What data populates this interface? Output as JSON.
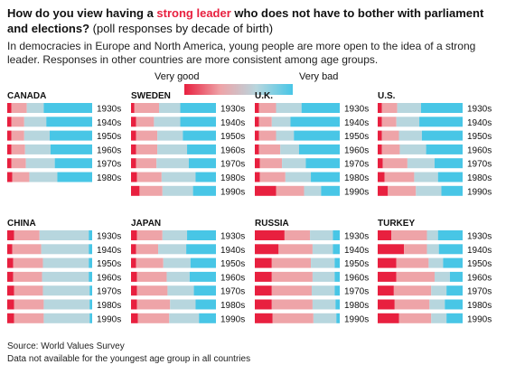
{
  "header": {
    "title_pre": "How do you view having a ",
    "title_highlight": "strong leader",
    "title_post": " who does not have to bother with parliament and elections?",
    "title_sub": " (poll responses by decade of birth)",
    "dek": "In democracies in Europe and North America, young people are more open to the idea of a strong leader. Responses in other countries are more consistent among age groups."
  },
  "legend": {
    "left_label": "Very good",
    "right_label": "Very bad"
  },
  "colors": {
    "very_good": "#e8203f",
    "fairly_good": "#eea4a8",
    "fairly_bad": "#b7d6de",
    "very_bad": "#48c6e6"
  },
  "chart_data": {
    "type": "bar",
    "stacked": true,
    "orientation": "horizontal",
    "segments": [
      "Very good",
      "Fairly good",
      "Fairly bad",
      "Very bad"
    ],
    "panels": [
      {
        "country": "CANADA",
        "rows": [
          {
            "decade": "1930s",
            "values": [
              5,
              18,
              20,
              57
            ]
          },
          {
            "decade": "1940s",
            "values": [
              5,
              15,
              26,
              54
            ]
          },
          {
            "decade": "1950s",
            "values": [
              5,
              15,
              30,
              50
            ]
          },
          {
            "decade": "1960s",
            "values": [
              5,
              16,
              30,
              49
            ]
          },
          {
            "decade": "1970s",
            "values": [
              5,
              17,
              34,
              44
            ]
          },
          {
            "decade": "1980s",
            "values": [
              6,
              20,
              33,
              41
            ]
          }
        ]
      },
      {
        "country": "SWEDEN",
        "rows": [
          {
            "decade": "1930s",
            "values": [
              4,
              29,
              25,
              42
            ]
          },
          {
            "decade": "1940s",
            "values": [
              6,
              21,
              31,
              42
            ]
          },
          {
            "decade": "1950s",
            "values": [
              6,
              25,
              30,
              39
            ]
          },
          {
            "decade": "1960s",
            "values": [
              6,
              25,
              35,
              34
            ]
          },
          {
            "decade": "1970s",
            "values": [
              6,
              24,
              38,
              32
            ]
          },
          {
            "decade": "1980s",
            "values": [
              7,
              29,
              40,
              24
            ]
          },
          {
            "decade": "1990s",
            "values": [
              10,
              27,
              36,
              27
            ]
          }
        ]
      },
      {
        "country": "U.K.",
        "rows": [
          {
            "decade": "1930s",
            "values": [
              5,
              20,
              30,
              45
            ]
          },
          {
            "decade": "1940s",
            "values": [
              5,
              15,
              22,
              58
            ]
          },
          {
            "decade": "1950s",
            "values": [
              5,
              20,
              21,
              54
            ]
          },
          {
            "decade": "1960s",
            "values": [
              5,
              25,
              22,
              48
            ]
          },
          {
            "decade": "1970s",
            "values": [
              6,
              26,
              28,
              40
            ]
          },
          {
            "decade": "1980s",
            "values": [
              6,
              30,
              30,
              34
            ]
          },
          {
            "decade": "1990s",
            "values": [
              25,
              33,
              20,
              22
            ]
          }
        ]
      },
      {
        "country": "U.S.",
        "rows": [
          {
            "decade": "1930s",
            "values": [
              5,
              18,
              28,
              49
            ]
          },
          {
            "decade": "1940s",
            "values": [
              5,
              17,
              27,
              51
            ]
          },
          {
            "decade": "1950s",
            "values": [
              5,
              20,
              27,
              48
            ]
          },
          {
            "decade": "1960s",
            "values": [
              5,
              21,
              31,
              43
            ]
          },
          {
            "decade": "1970s",
            "values": [
              6,
              29,
              32,
              33
            ]
          },
          {
            "decade": "1980s",
            "values": [
              8,
              35,
              28,
              29
            ]
          },
          {
            "decade": "1990s",
            "values": [
              12,
              33,
              30,
              25
            ]
          }
        ]
      },
      {
        "country": "CHINA",
        "rows": [
          {
            "decade": "1930s",
            "values": [
              8,
              30,
              58,
              4
            ]
          },
          {
            "decade": "1940s",
            "values": [
              6,
              34,
              56,
              4
            ]
          },
          {
            "decade": "1950s",
            "values": [
              7,
              35,
              54,
              4
            ]
          },
          {
            "decade": "1960s",
            "values": [
              7,
              34,
              55,
              4
            ]
          },
          {
            "decade": "1970s",
            "values": [
              8,
              34,
              55,
              3
            ]
          },
          {
            "decade": "1980s",
            "values": [
              8,
              35,
              54,
              3
            ]
          },
          {
            "decade": "1990s",
            "values": [
              8,
              35,
              54,
              3
            ]
          }
        ]
      },
      {
        "country": "JAPAN",
        "rows": [
          {
            "decade": "1930s",
            "values": [
              7,
              30,
              29,
              34
            ]
          },
          {
            "decade": "1940s",
            "values": [
              6,
              26,
              33,
              35
            ]
          },
          {
            "decade": "1950s",
            "values": [
              6,
              32,
              32,
              30
            ]
          },
          {
            "decade": "1960s",
            "values": [
              7,
              35,
              27,
              31
            ]
          },
          {
            "decade": "1970s",
            "values": [
              7,
              36,
              31,
              26
            ]
          },
          {
            "decade": "1980s",
            "values": [
              7,
              39,
              30,
              24
            ]
          },
          {
            "decade": "1990s",
            "values": [
              8,
              37,
              35,
              20
            ]
          }
        ]
      },
      {
        "country": "RUSSIA",
        "rows": [
          {
            "decade": "1930s",
            "values": [
              35,
              30,
              27,
              8
            ]
          },
          {
            "decade": "1940s",
            "values": [
              28,
              40,
              24,
              8
            ]
          },
          {
            "decade": "1950s",
            "values": [
              20,
              46,
              28,
              6
            ]
          },
          {
            "decade": "1960s",
            "values": [
              20,
              48,
              26,
              6
            ]
          },
          {
            "decade": "1970s",
            "values": [
              20,
              47,
              27,
              6
            ]
          },
          {
            "decade": "1980s",
            "values": [
              20,
              48,
              27,
              5
            ]
          },
          {
            "decade": "1990s",
            "values": [
              21,
              48,
              27,
              4
            ]
          }
        ]
      },
      {
        "country": "TURKEY",
        "rows": [
          {
            "decade": "1930s",
            "values": [
              16,
              42,
              13,
              29
            ]
          },
          {
            "decade": "1940s",
            "values": [
              31,
              27,
              14,
              28
            ]
          },
          {
            "decade": "1950s",
            "values": [
              22,
              38,
              17,
              23
            ]
          },
          {
            "decade": "1960s",
            "values": [
              22,
              45,
              18,
              15
            ]
          },
          {
            "decade": "1970s",
            "values": [
              19,
              44,
              18,
              19
            ]
          },
          {
            "decade": "1980s",
            "values": [
              20,
              41,
              18,
              21
            ]
          },
          {
            "decade": "1990s",
            "values": [
              25,
              38,
              18,
              19
            ]
          }
        ]
      }
    ]
  },
  "footer": {
    "source": "Source: World Values Survey",
    "note": "Data not available for the youngest age group in all countries"
  }
}
